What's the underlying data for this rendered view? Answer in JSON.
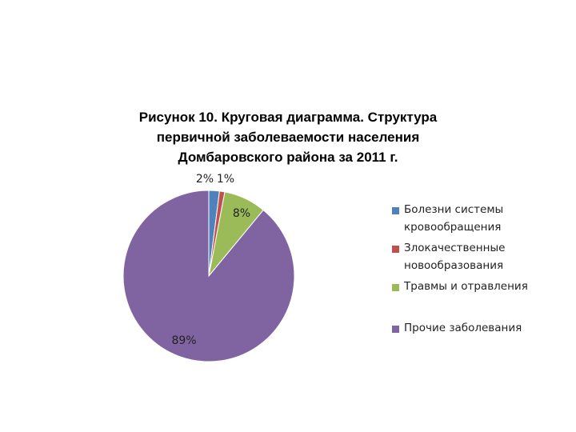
{
  "chart_data": {
    "type": "pie",
    "title_lines": [
      "Рисунок 10. Круговая диаграмма. Структура",
      "первичной заболеваемости населения",
      "Домбаровского района за 2011 г."
    ],
    "categories": [
      "Болезни системы кровообращения",
      "Злокачественные новообразования",
      "Травмы и отравления",
      "Прочие заболевания"
    ],
    "values": [
      2,
      1,
      8,
      89
    ],
    "data_labels": [
      "2%",
      "1%",
      "8%",
      "89%"
    ],
    "colors": [
      "#4F81BD",
      "#C0504D",
      "#9BBB59",
      "#8064A2"
    ],
    "legend_placement": "right"
  }
}
